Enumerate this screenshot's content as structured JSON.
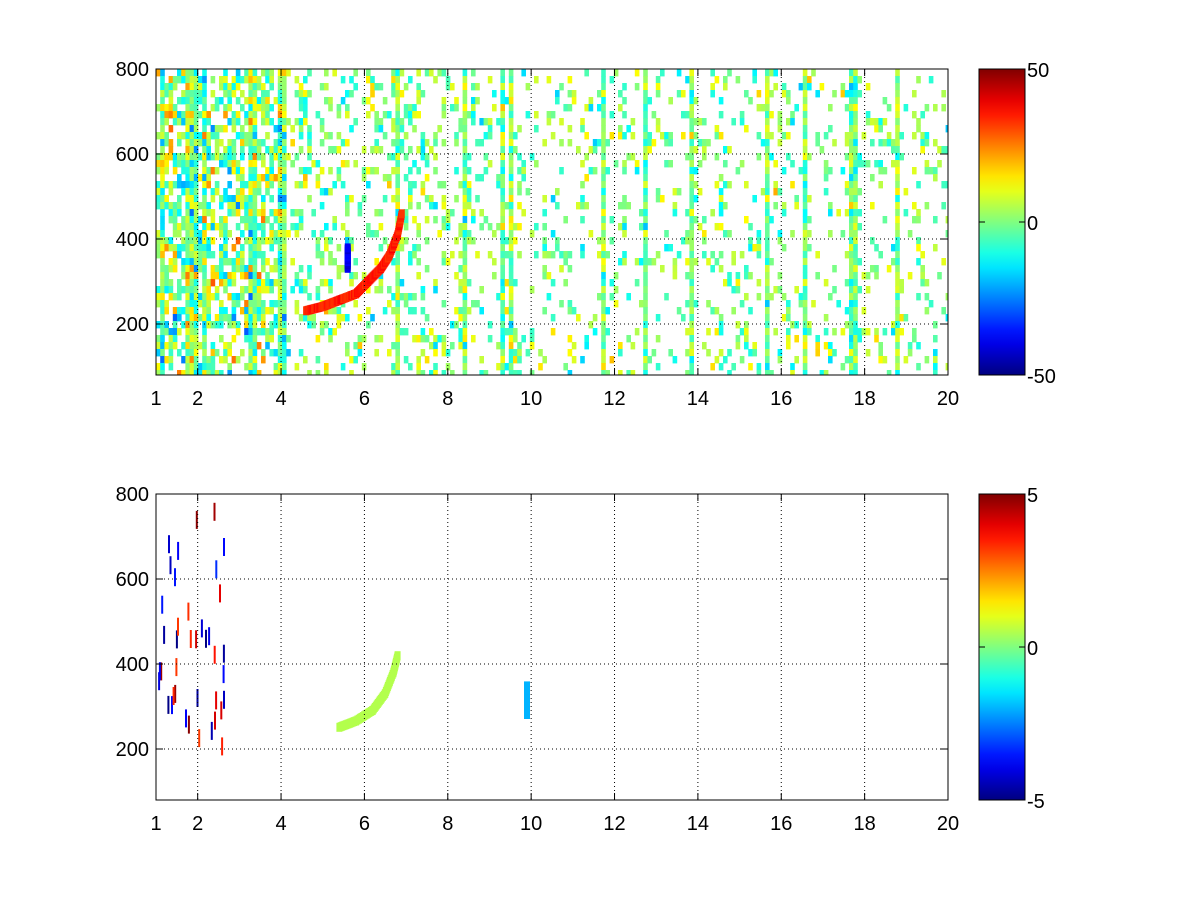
{
  "chart_data": [
    {
      "type": "heatmap",
      "title": "",
      "xlabel": "",
      "ylabel": "",
      "xlim": [
        1,
        20
      ],
      "ylim": [
        80,
        800
      ],
      "grid": true,
      "x_ticks": [
        "1",
        "2",
        "4",
        "6",
        "8",
        "10",
        "12",
        "14",
        "16",
        "18",
        "20"
      ],
      "x_tick_values": [
        1,
        2,
        4,
        6,
        8,
        10,
        12,
        14,
        16,
        18,
        20
      ],
      "y_ticks": [
        "200",
        "400",
        "600",
        "800"
      ],
      "y_tick_values": [
        200,
        400,
        600,
        800
      ],
      "colormap": "jet",
      "colorbar": {
        "min": -50,
        "max": 50,
        "ticks": [
          "50",
          "0",
          "-50"
        ],
        "tick_values": [
          50,
          0,
          -50
        ]
      },
      "features": [
        {
          "name": "curved ridge",
          "x": [
            4.6,
            5.0,
            5.4,
            5.8,
            6.1,
            6.4,
            6.6,
            6.8,
            6.9
          ],
          "y": [
            230,
            240,
            255,
            270,
            300,
            330,
            360,
            410,
            460
          ],
          "value": 35
        },
        {
          "name": "blue streak",
          "x": [
            5.6,
            5.6
          ],
          "y": [
            330,
            380
          ],
          "value": -40
        }
      ]
    },
    {
      "type": "heatmap",
      "title": "",
      "xlabel": "",
      "ylabel": "",
      "xlim": [
        1,
        20
      ],
      "ylim": [
        80,
        800
      ],
      "grid": true,
      "x_ticks": [
        "1",
        "2",
        "4",
        "6",
        "8",
        "10",
        "12",
        "14",
        "16",
        "18",
        "20"
      ],
      "x_tick_values": [
        1,
        2,
        4,
        6,
        8,
        10,
        12,
        14,
        16,
        18,
        20
      ],
      "y_ticks": [
        "200",
        "400",
        "600",
        "800"
      ],
      "y_tick_values": [
        200,
        400,
        600,
        800
      ],
      "colormap": "jet",
      "colorbar": {
        "min": -5,
        "max": 5,
        "ticks": [
          "5",
          "0",
          "-5"
        ],
        "tick_values": [
          5,
          0,
          -5
        ]
      },
      "features": [
        {
          "name": "curved ridge",
          "x": [
            5.4,
            5.8,
            6.2,
            6.5,
            6.7,
            6.8
          ],
          "y": [
            250,
            265,
            290,
            330,
            380,
            420
          ],
          "value": 0.5
        },
        {
          "name": "streak near 10",
          "x": [
            9.9,
            9.9
          ],
          "y": [
            280,
            350
          ],
          "value": -2
        }
      ]
    }
  ]
}
